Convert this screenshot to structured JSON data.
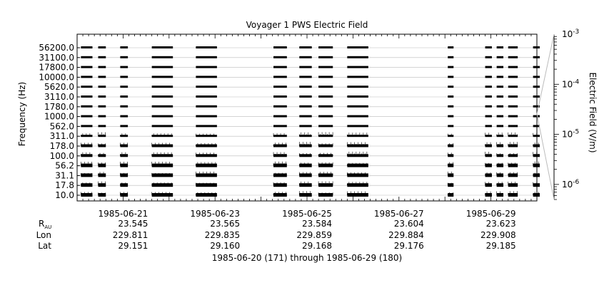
{
  "chart_data": {
    "type": "multi-channel time series spectrogram",
    "title": "Voyager 1 PWS Electric Field",
    "ylabel": "Frequency (Hz)",
    "colorbar_label": "Electric Field (V/m)",
    "colorbar_scale": "log",
    "colorbar_range": [
      5e-07,
      0.001
    ],
    "colorbar_ticks": [
      {
        "base": "10",
        "exp": "-3",
        "value": 0.001
      },
      {
        "base": "10",
        "exp": "-4",
        "value": 0.0001
      },
      {
        "base": "10",
        "exp": "-5",
        "value": 1e-05
      },
      {
        "base": "10",
        "exp": "-6",
        "value": 1e-06
      }
    ],
    "y_tick_labels": [
      "56200.0",
      "31100.0",
      "17800.0",
      "10000.0",
      "5620.0",
      "3110.0",
      "1780.0",
      "1000.0",
      "562.0",
      "311.0",
      "178.0",
      "100.0",
      "56.2",
      "31.1",
      "17.8",
      "10.0"
    ],
    "channels_hz": [
      56200.0,
      31100.0,
      17800.0,
      10000.0,
      5620.0,
      3110.0,
      1780.0,
      1000.0,
      562.0,
      311.0,
      178.0,
      100.0,
      56.2,
      31.1,
      17.8,
      10.0
    ],
    "x_range_days": [
      "1985-06-20T00:00",
      "1985-06-30T00:00"
    ],
    "x_tick_dates": [
      "1985-06-21",
      "1985-06-23",
      "1985-06-25",
      "1985-06-27",
      "1985-06-29"
    ],
    "ephemeris_labels": {
      "r": "R",
      "r_sub": "AU",
      "lon": "Lon",
      "lat": "Lat"
    },
    "ephemeris": [
      {
        "date": "1985-06-21",
        "r_au": "23.545",
        "lon": "229.811",
        "lat": "29.151"
      },
      {
        "date": "1985-06-23",
        "r_au": "23.565",
        "lon": "229.835",
        "lat": "29.160"
      },
      {
        "date": "1985-06-25",
        "r_au": "23.584",
        "lon": "229.859",
        "lat": "29.168"
      },
      {
        "date": "1985-06-27",
        "r_au": "23.604",
        "lon": "229.884",
        "lat": "29.176"
      },
      {
        "date": "1985-06-29",
        "r_au": "23.623",
        "lon": "229.908",
        "lat": "29.185"
      }
    ],
    "data_segments": [
      [
        "1985-06-20T02:00",
        "1985-06-20T08:00"
      ],
      [
        "1985-06-20T11:00",
        "1985-06-20T15:00"
      ],
      [
        "1985-06-20T22:30",
        "1985-06-21T02:30"
      ],
      [
        "1985-06-21T15:00",
        "1985-06-22T02:00"
      ],
      [
        "1985-06-22T14:00",
        "1985-06-23T01:00"
      ],
      [
        "1985-06-24T06:30",
        "1985-06-24T13:30"
      ],
      [
        "1985-06-24T20:00",
        "1985-06-25T02:30"
      ],
      [
        "1985-06-25T06:00",
        "1985-06-25T13:30"
      ],
      [
        "1985-06-25T21:00",
        "1985-06-26T08:00"
      ],
      [
        "1985-06-28T01:30",
        "1985-06-28T04:30"
      ],
      [
        "1985-06-28T21:00",
        "1985-06-29T00:30"
      ],
      [
        "1985-06-29T03:00",
        "1985-06-29T06:30"
      ],
      [
        "1985-06-29T09:00",
        "1985-06-29T14:00"
      ],
      [
        "1985-06-29T22:00",
        "1985-06-30T01:30"
      ]
    ],
    "footer": "1985-06-20 (171) through 1985-06-29 (180)"
  }
}
